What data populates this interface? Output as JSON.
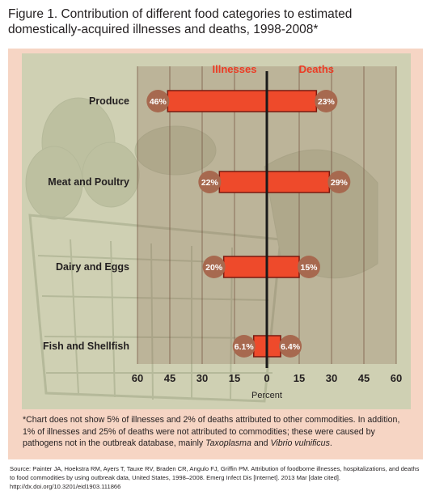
{
  "figure": {
    "title": "Figure 1.  Contribution of different food categories to estimated domestically-acquired illnesses and deaths, 1998-2008*"
  },
  "footnote": {
    "text_before": "*Chart does not show 5% of illnesses and 2% of deaths attributed to other commodities. In addition, 1% of illnesses and 25% of deaths were not attributed to commodities; these were caused by pathogens not in the outbreak database, mainly ",
    "italic_1": "Taxoplasma",
    "text_mid": " and ",
    "italic_2": "Vibrio vulnificus",
    "text_after": "."
  },
  "source": {
    "text": "Source: Painter JA, Hoekstra RM, Ayers T, Tauxe RV, Braden CR, Angulo FJ, Griffin PM. Attribution of foodborne illnesses, hospitalizations, and deaths to food commodities by using outbreak data, United States, 1998–2008. Emerg Infect Dis [Internet]. 2013 Mar [date cited]. http://dx.doi.org/10.3201/eid1903.111866"
  },
  "colors": {
    "bar_fill": "#ee4a2b",
    "bar_stroke": "#7a1a10",
    "header_text": "#ec3b24",
    "value_badge": "#a7694f",
    "frame": "#f6d5c4",
    "panel": "#cfd0b3",
    "center_axis": "#1a1a1a"
  },
  "chart_data": {
    "type": "bar",
    "orientation": "horizontal-butterfly",
    "title": "",
    "xlabel": "Percent",
    "left_header": "Illnesses",
    "right_header": "Deaths",
    "categories": [
      "Produce",
      "Meat and Poultry",
      "Dairy and Eggs",
      "Fish and Shellfish"
    ],
    "series": [
      {
        "name": "Illnesses",
        "side": "left",
        "values": [
          46,
          22,
          20,
          6.1
        ],
        "labels": [
          "46%",
          "22%",
          "20%",
          "6.1%"
        ]
      },
      {
        "name": "Deaths",
        "side": "right",
        "values": [
          23,
          29,
          15,
          6.4
        ],
        "labels": [
          "23%",
          "29%",
          "15%",
          "6.4%"
        ]
      }
    ],
    "xlim": [
      -60,
      60
    ],
    "ticks": [
      -60,
      -45,
      -30,
      -15,
      0,
      15,
      30,
      45,
      60
    ],
    "tick_labels": [
      "60",
      "45",
      "30",
      "15",
      "0",
      "15",
      "30",
      "45",
      "60"
    ],
    "grid": true,
    "legend": "none"
  }
}
